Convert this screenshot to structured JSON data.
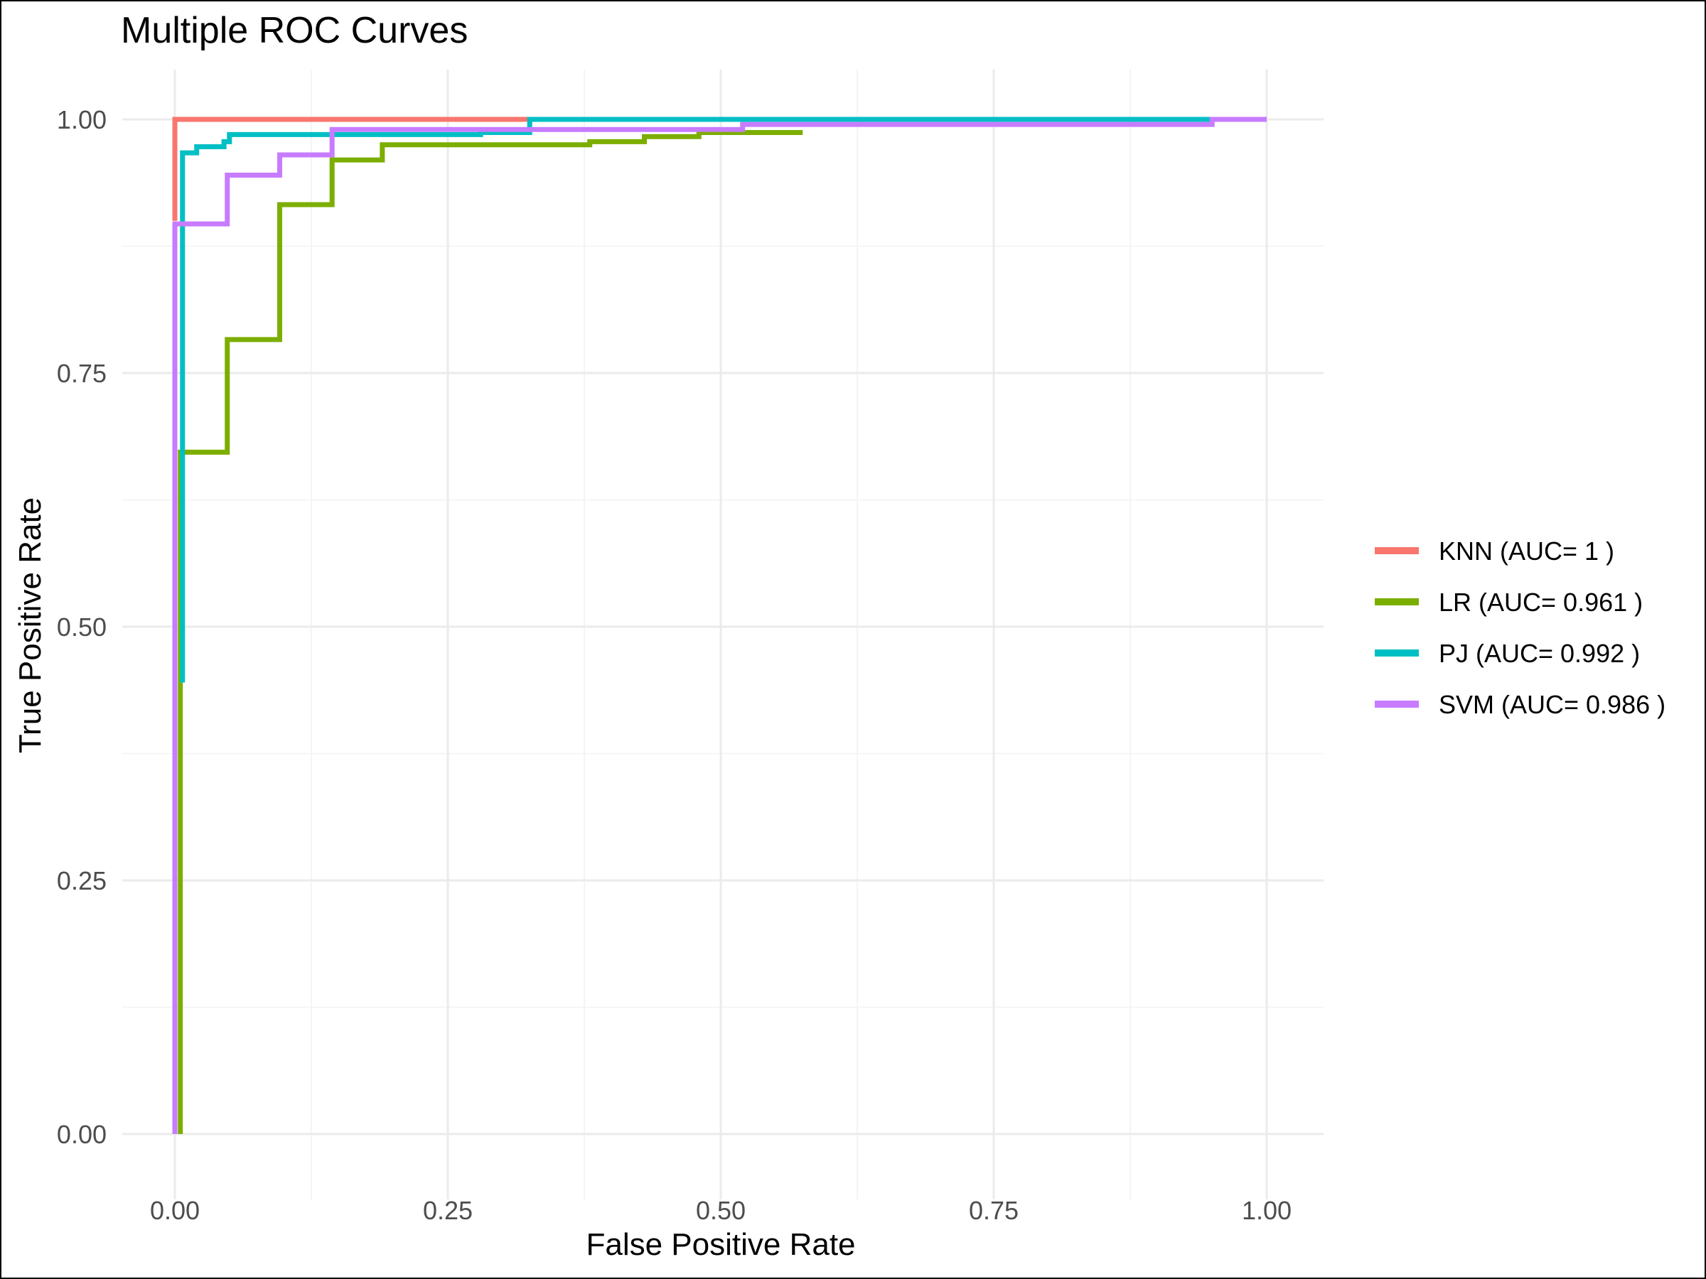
{
  "chart_data": {
    "type": "line",
    "title": "Multiple ROC Curves",
    "xlabel": "False Positive Rate",
    "ylabel": "True Positive Rate",
    "xlim": [
      0,
      1
    ],
    "ylim": [
      0,
      1
    ],
    "x_ticks": [
      "0.00",
      "0.25",
      "0.50",
      "0.75",
      "1.00"
    ],
    "y_ticks": [
      "0.00",
      "0.25",
      "0.50",
      "0.75",
      "1.00"
    ],
    "grid": true,
    "legend_position": "right",
    "series": [
      {
        "name": "KNN (AUC= 1 )",
        "color": "#F8766D",
        "points": [
          [
            0,
            0.9
          ],
          [
            0,
            1.0
          ],
          [
            0.325,
            1.0
          ]
        ]
      },
      {
        "name": "LR (AUC= 0.961 )",
        "color": "#7CAE00",
        "points": [
          [
            0.005,
            0.0
          ],
          [
            0.005,
            0.672
          ],
          [
            0.048,
            0.672
          ],
          [
            0.048,
            0.783
          ],
          [
            0.096,
            0.783
          ],
          [
            0.096,
            0.916
          ],
          [
            0.144,
            0.916
          ],
          [
            0.144,
            0.96
          ],
          [
            0.19,
            0.96
          ],
          [
            0.19,
            0.975
          ],
          [
            0.38,
            0.975
          ],
          [
            0.38,
            0.978
          ],
          [
            0.43,
            0.978
          ],
          [
            0.43,
            0.983
          ],
          [
            0.48,
            0.983
          ],
          [
            0.48,
            0.987
          ],
          [
            0.575,
            0.987
          ]
        ]
      },
      {
        "name": "PJ (AUC= 0.992 )",
        "color": "#00BFC4",
        "points": [
          [
            0.007,
            0.445
          ],
          [
            0.007,
            0.967
          ],
          [
            0.02,
            0.967
          ],
          [
            0.02,
            0.973
          ],
          [
            0.045,
            0.973
          ],
          [
            0.045,
            0.978
          ],
          [
            0.05,
            0.978
          ],
          [
            0.05,
            0.985
          ],
          [
            0.28,
            0.985
          ],
          [
            0.28,
            0.987
          ],
          [
            0.325,
            0.987
          ],
          [
            0.325,
            1.0
          ],
          [
            0.95,
            1.0
          ]
        ]
      },
      {
        "name": "SVM (AUC= 0.986 )",
        "color": "#C77CFF",
        "points": [
          [
            0.0,
            0.0
          ],
          [
            0.0,
            0.897
          ],
          [
            0.048,
            0.897
          ],
          [
            0.048,
            0.945
          ],
          [
            0.096,
            0.945
          ],
          [
            0.096,
            0.965
          ],
          [
            0.144,
            0.965
          ],
          [
            0.144,
            0.99
          ],
          [
            0.52,
            0.99
          ],
          [
            0.52,
            0.995
          ],
          [
            0.95,
            0.995
          ],
          [
            0.95,
            1.0
          ],
          [
            1.0,
            1.0
          ]
        ]
      }
    ]
  }
}
